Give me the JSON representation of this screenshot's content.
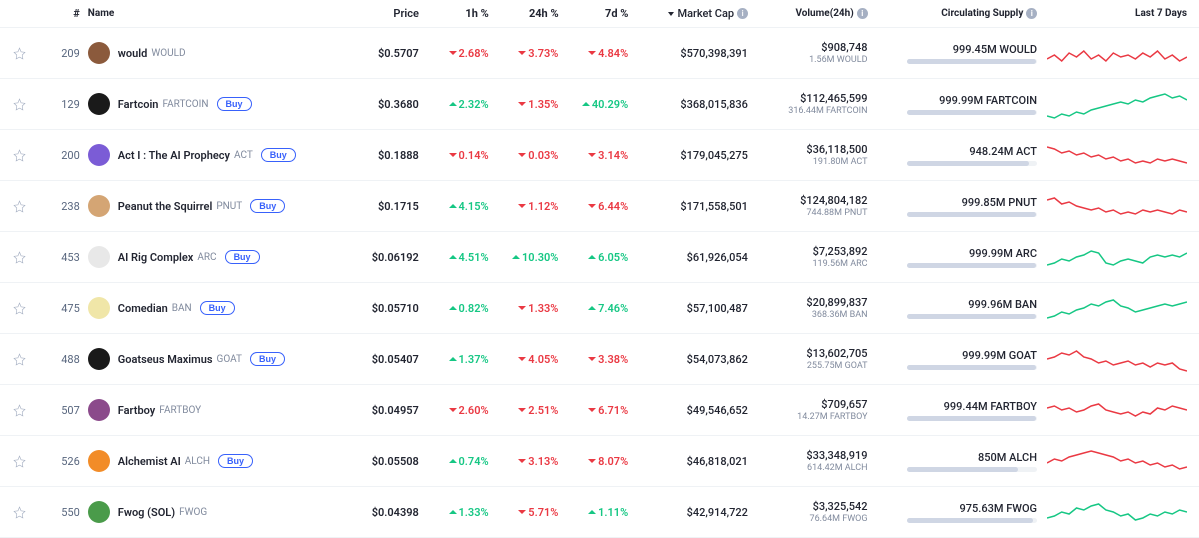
{
  "headers": {
    "rank": "#",
    "name": "Name",
    "price": "Price",
    "h1": "1h %",
    "h24": "24h %",
    "d7": "7d %",
    "mcap": "Market Cap",
    "volume": "Volume(24h)",
    "supply": "Circulating Supply",
    "chart": "Last 7 Days"
  },
  "colors": {
    "up": "#16c784",
    "down": "#ea3943",
    "text": "#222531",
    "sub": "#808a9d"
  },
  "rows": [
    {
      "rank": "209",
      "name": "would",
      "symbol": "WOULD",
      "icon_bg": "#8b5a3c",
      "price": "$0.5707",
      "h1": "2.68%",
      "h1_dir": "down",
      "h24": "3.73%",
      "h24_dir": "down",
      "d7": "4.84%",
      "d7_dir": "down",
      "mcap": "$570,398,391",
      "vol": "$908,748",
      "vol_sub": "1.56M WOULD",
      "supply": "999.45M WOULD",
      "supply_pct": 99,
      "buy": false,
      "spark_color": "#ea3943",
      "spark": [
        22,
        18,
        24,
        16,
        20,
        14,
        22,
        18,
        24,
        16,
        20,
        18,
        22,
        16,
        20,
        14,
        22,
        18,
        24,
        20
      ]
    },
    {
      "rank": "129",
      "name": "Fartcoin",
      "symbol": "FARTCOIN",
      "icon_bg": "#1a1a1a",
      "price": "$0.3680",
      "h1": "2.32%",
      "h1_dir": "up",
      "h24": "1.35%",
      "h24_dir": "down",
      "d7": "40.29%",
      "d7_dir": "up",
      "mcap": "$368,015,836",
      "vol": "$112,465,599",
      "vol_sub": "316.44M FARTCOIN",
      "supply": "999.99M FARTCOIN",
      "supply_pct": 99,
      "buy": true,
      "spark_color": "#16c784",
      "spark": [
        28,
        30,
        26,
        28,
        24,
        26,
        22,
        20,
        18,
        16,
        14,
        16,
        12,
        14,
        10,
        8,
        6,
        10,
        8,
        12
      ]
    },
    {
      "rank": "200",
      "name": "Act I : The AI Prophecy",
      "symbol": "ACT",
      "icon_bg": "#7b5cd6",
      "price": "$0.1888",
      "h1": "0.14%",
      "h1_dir": "down",
      "h24": "0.03%",
      "h24_dir": "down",
      "d7": "3.14%",
      "d7_dir": "down",
      "mcap": "$179,045,275",
      "vol": "$36,118,500",
      "vol_sub": "191.80M ACT",
      "supply": "948.24M ACT",
      "supply_pct": 94,
      "buy": true,
      "spark_color": "#ea3943",
      "spark": [
        8,
        10,
        14,
        12,
        16,
        14,
        18,
        16,
        20,
        18,
        22,
        20,
        24,
        22,
        24,
        20,
        22,
        20,
        22,
        24
      ]
    },
    {
      "rank": "238",
      "name": "Peanut the Squirrel",
      "symbol": "PNUT",
      "icon_bg": "#d4a574",
      "price": "$0.1715",
      "h1": "4.15%",
      "h1_dir": "up",
      "h24": "1.12%",
      "h24_dir": "down",
      "d7": "6.44%",
      "d7_dir": "down",
      "mcap": "$171,558,501",
      "vol": "$124,804,182",
      "vol_sub": "744.88M PNUT",
      "supply": "999.85M PNUT",
      "supply_pct": 99,
      "buy": true,
      "spark_color": "#ea3943",
      "spark": [
        10,
        8,
        14,
        12,
        16,
        18,
        20,
        18,
        22,
        20,
        24,
        22,
        24,
        20,
        22,
        20,
        22,
        24,
        20,
        22
      ]
    },
    {
      "rank": "453",
      "name": "AI Rig Complex",
      "symbol": "ARC",
      "icon_bg": "#e8e8e8",
      "price": "$0.06192",
      "h1": "4.51%",
      "h1_dir": "up",
      "h24": "10.30%",
      "h24_dir": "up",
      "d7": "6.05%",
      "d7_dir": "up",
      "mcap": "$61,926,054",
      "vol": "$7,253,892",
      "vol_sub": "119.56M ARC",
      "supply": "999.99M ARC",
      "supply_pct": 99,
      "buy": true,
      "spark_color": "#16c784",
      "spark": [
        24,
        22,
        18,
        20,
        16,
        14,
        10,
        12,
        22,
        24,
        20,
        18,
        20,
        22,
        16,
        14,
        16,
        14,
        16,
        12
      ]
    },
    {
      "rank": "475",
      "name": "Comedian",
      "symbol": "BAN",
      "icon_bg": "#f0e6a8",
      "price": "$0.05710",
      "h1": "0.82%",
      "h1_dir": "up",
      "h24": "1.33%",
      "h24_dir": "down",
      "d7": "7.46%",
      "d7_dir": "up",
      "mcap": "$57,100,487",
      "vol": "$20,899,837",
      "vol_sub": "368.36M BAN",
      "supply": "999.96M BAN",
      "supply_pct": 99,
      "buy": true,
      "spark_color": "#16c784",
      "spark": [
        26,
        24,
        20,
        22,
        18,
        16,
        12,
        14,
        10,
        8,
        14,
        16,
        20,
        18,
        16,
        14,
        12,
        14,
        12,
        10
      ]
    },
    {
      "rank": "488",
      "name": "Goatseus Maximus",
      "symbol": "GOAT",
      "icon_bg": "#1a1a1a",
      "price": "$0.05407",
      "h1": "1.37%",
      "h1_dir": "up",
      "h24": "4.05%",
      "h24_dir": "down",
      "d7": "3.38%",
      "d7_dir": "down",
      "mcap": "$54,073,862",
      "vol": "$13,602,705",
      "vol_sub": "255.75M GOAT",
      "supply": "999.99M GOAT",
      "supply_pct": 99,
      "buy": true,
      "spark_color": "#ea3943",
      "spark": [
        16,
        14,
        10,
        12,
        8,
        14,
        16,
        20,
        18,
        22,
        20,
        18,
        22,
        20,
        24,
        20,
        22,
        20,
        26,
        28
      ]
    },
    {
      "rank": "507",
      "name": "Fartboy",
      "symbol": "FARTBOY",
      "icon_bg": "#8b4a8b",
      "price": "$0.04957",
      "h1": "2.60%",
      "h1_dir": "down",
      "h24": "2.51%",
      "h24_dir": "down",
      "d7": "6.71%",
      "d7_dir": "down",
      "mcap": "$49,546,652",
      "vol": "$709,657",
      "vol_sub": "14.27M FARTBOY",
      "supply": "999.44M FARTBOY",
      "supply_pct": 99,
      "buy": false,
      "spark_color": "#ea3943",
      "spark": [
        14,
        12,
        16,
        14,
        18,
        16,
        12,
        10,
        16,
        18,
        20,
        18,
        22,
        18,
        20,
        14,
        16,
        12,
        14,
        16
      ]
    },
    {
      "rank": "526",
      "name": "Alchemist AI",
      "symbol": "ALCH",
      "icon_bg": "#f28c28",
      "price": "$0.05508",
      "h1": "0.74%",
      "h1_dir": "up",
      "h24": "3.13%",
      "h24_dir": "down",
      "d7": "8.07%",
      "d7_dir": "down",
      "mcap": "$46,818,021",
      "vol": "$33,348,919",
      "vol_sub": "614.42M ALCH",
      "supply": "850M ALCH",
      "supply_pct": 85,
      "buy": true,
      "spark_color": "#ea3943",
      "spark": [
        18,
        14,
        16,
        12,
        10,
        8,
        6,
        8,
        10,
        12,
        16,
        14,
        18,
        16,
        20,
        18,
        22,
        20,
        24,
        22
      ]
    },
    {
      "rank": "550",
      "name": "Fwog (SOL)",
      "symbol": "FWOG",
      "icon_bg": "#4a9b4a",
      "price": "$0.04398",
      "h1": "1.33%",
      "h1_dir": "up",
      "h24": "5.71%",
      "h24_dir": "down",
      "d7": "1.11%",
      "d7_dir": "up",
      "mcap": "$42,914,722",
      "vol": "$3,325,542",
      "vol_sub": "76.64M FWOG",
      "supply": "975.63M FWOG",
      "supply_pct": 97,
      "buy": false,
      "spark_color": "#16c784",
      "spark": [
        22,
        20,
        16,
        18,
        12,
        14,
        10,
        8,
        14,
        16,
        20,
        18,
        24,
        22,
        18,
        20,
        16,
        18,
        14,
        16
      ]
    }
  ]
}
